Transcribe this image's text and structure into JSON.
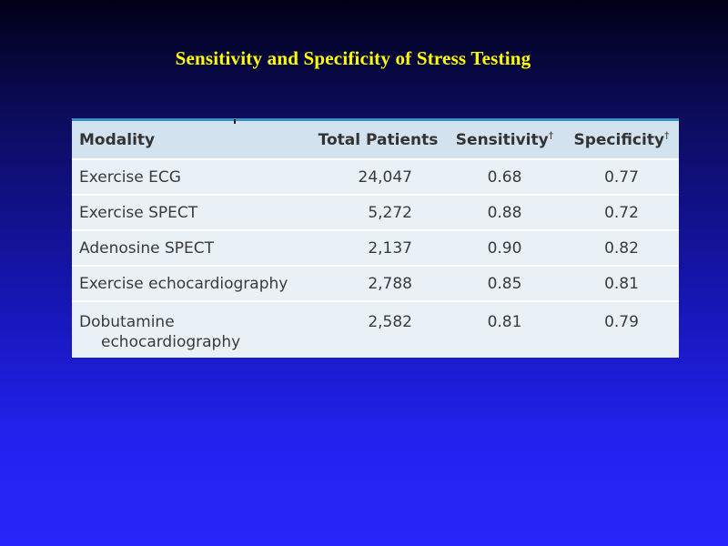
{
  "title": "Sensitivity and Specificity of Stress Testing",
  "table": {
    "headers": {
      "modality": "Modality",
      "total_patients": "Total Patients",
      "sensitivity": "Sensitivity",
      "specificity": "Specificity",
      "footnote_marker": "†"
    },
    "rows": [
      {
        "modality": "Exercise ECG",
        "total_patients": "24,047",
        "sensitivity": "0.68",
        "specificity": "0.77"
      },
      {
        "modality": "Exercise SPECT",
        "total_patients": "5,272",
        "sensitivity": "0.88",
        "specificity": "0.72"
      },
      {
        "modality": "Adenosine SPECT",
        "total_patients": "2,137",
        "sensitivity": "0.90",
        "specificity": "0.82"
      },
      {
        "modality": "Exercise echocardiography",
        "total_patients": "2,788",
        "sensitivity": "0.85",
        "specificity": "0.81"
      },
      {
        "modality_line1": "Dobutamine",
        "modality_line2": "echocardiography",
        "total_patients": "2,582",
        "sensitivity": "0.81",
        "specificity": "0.79"
      }
    ]
  }
}
